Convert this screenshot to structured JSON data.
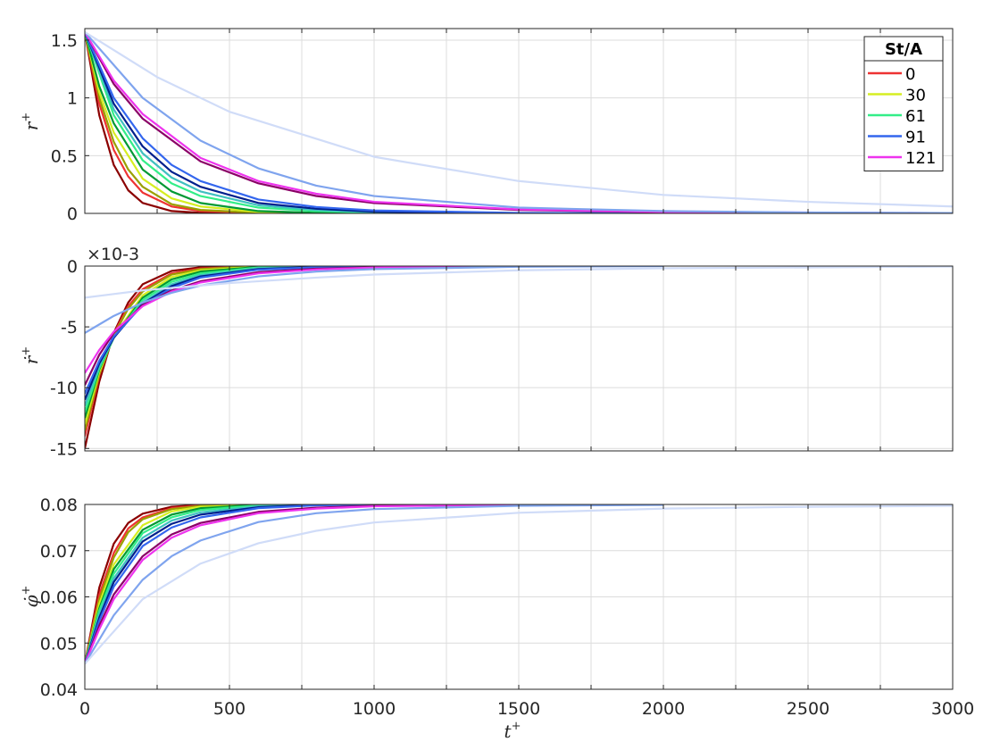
{
  "legend": {
    "title": "St/A",
    "entries": [
      {
        "label": "0",
        "color": "#ee3333"
      },
      {
        "label": "30",
        "color": "#d6ee22"
      },
      {
        "label": "61",
        "color": "#33ee88"
      },
      {
        "label": "91",
        "color": "#3366ee"
      },
      {
        "label": "121",
        "color": "#ee33ee"
      }
    ]
  },
  "chart_data": [
    {
      "type": "line",
      "ylabel": "r⁺",
      "xlabel": "",
      "xlim": [
        0,
        3000
      ],
      "ylim": [
        0,
        1.6
      ],
      "x_ticks": [
        0,
        500,
        1000,
        1500,
        2000,
        2500,
        3000
      ],
      "y_ticks": [
        "0",
        "0.5",
        "1",
        "1.5"
      ],
      "y_tick_values": [
        0,
        0.5,
        1,
        1.5
      ],
      "grid": true,
      "legend_position": "top-right",
      "series": [
        {
          "color": "#8b0000",
          "x": [
            0,
            50,
            100,
            150,
            200,
            300,
            400,
            600
          ],
          "y": [
            1.57,
            0.85,
            0.42,
            0.2,
            0.09,
            0.02,
            0.005,
            0
          ]
        },
        {
          "color": "#ee3333",
          "x": [
            0,
            50,
            100,
            150,
            200,
            300,
            400,
            600,
            800
          ],
          "y": [
            1.57,
            0.95,
            0.55,
            0.32,
            0.18,
            0.06,
            0.02,
            0.003,
            0
          ]
        },
        {
          "color": "#9aa000",
          "x": [
            0,
            50,
            100,
            150,
            200,
            300,
            400,
            600,
            800
          ],
          "y": [
            1.57,
            1.0,
            0.62,
            0.38,
            0.23,
            0.08,
            0.03,
            0.005,
            0
          ]
        },
        {
          "color": "#d6ee22",
          "x": [
            0,
            50,
            100,
            200,
            300,
            400,
            600,
            800
          ],
          "y": [
            1.57,
            1.05,
            0.7,
            0.3,
            0.13,
            0.06,
            0.012,
            0.002
          ]
        },
        {
          "color": "#009933",
          "x": [
            0,
            50,
            100,
            200,
            300,
            400,
            600,
            800,
            1000
          ],
          "y": [
            1.57,
            1.1,
            0.78,
            0.38,
            0.19,
            0.09,
            0.02,
            0.005,
            0
          ]
        },
        {
          "color": "#33ee88",
          "x": [
            0,
            100,
            200,
            300,
            400,
            600,
            800,
            1000,
            1400
          ],
          "y": [
            1.57,
            0.85,
            0.46,
            0.26,
            0.15,
            0.05,
            0.02,
            0.006,
            0
          ]
        },
        {
          "color": "#40c0c0",
          "x": [
            0,
            100,
            200,
            300,
            400,
            600,
            800,
            1000,
            1400
          ],
          "y": [
            1.57,
            0.9,
            0.52,
            0.31,
            0.19,
            0.07,
            0.03,
            0.01,
            0
          ]
        },
        {
          "color": "#001f8c",
          "x": [
            0,
            100,
            200,
            300,
            400,
            600,
            800,
            1000,
            1500
          ],
          "y": [
            1.57,
            0.95,
            0.58,
            0.36,
            0.23,
            0.09,
            0.04,
            0.015,
            0
          ]
        },
        {
          "color": "#3366ee",
          "x": [
            0,
            100,
            200,
            300,
            400,
            600,
            800,
            1000,
            1500,
            2000
          ],
          "y": [
            1.57,
            1.0,
            0.65,
            0.42,
            0.28,
            0.12,
            0.055,
            0.025,
            0.004,
            0
          ]
        },
        {
          "color": "#8a0066",
          "x": [
            0,
            100,
            200,
            400,
            600,
            800,
            1000,
            1500,
            2000,
            3000
          ],
          "y": [
            1.57,
            1.12,
            0.82,
            0.45,
            0.26,
            0.15,
            0.09,
            0.03,
            0.01,
            0.001
          ]
        },
        {
          "color": "#ee33ee",
          "x": [
            0,
            100,
            200,
            400,
            600,
            800,
            1000,
            1500,
            2000,
            3000
          ],
          "y": [
            1.57,
            1.15,
            0.86,
            0.48,
            0.28,
            0.17,
            0.1,
            0.035,
            0.012,
            0.002
          ]
        },
        {
          "color": "#7fa4ee",
          "x": [
            0,
            200,
            400,
            600,
            800,
            1000,
            1500,
            2000,
            2500,
            3000
          ],
          "y": [
            1.57,
            1.0,
            0.63,
            0.39,
            0.24,
            0.15,
            0.05,
            0.02,
            0.008,
            0.003
          ]
        },
        {
          "color": "#d0dcf8",
          "x": [
            0,
            250,
            500,
            1000,
            1500,
            2000,
            2500,
            3000
          ],
          "y": [
            1.57,
            1.18,
            0.88,
            0.49,
            0.28,
            0.16,
            0.1,
            0.06
          ]
        }
      ]
    },
    {
      "type": "line",
      "ylabel": "ṙ⁺",
      "xlabel": "",
      "multiplier_label": "×10-3",
      "xlim": [
        0,
        3000
      ],
      "ylim": [
        -15.2,
        0
      ],
      "x_ticks": [
        0,
        500,
        1000,
        1500,
        2000,
        2500,
        3000
      ],
      "y_ticks": [
        "0",
        "-5",
        "-10",
        "-15"
      ],
      "y_tick_values": [
        0,
        -5,
        -10,
        -15
      ],
      "grid": true,
      "series": [
        {
          "color": "#8b0000",
          "x": [
            0,
            50,
            100,
            150,
            200,
            300,
            400,
            600
          ],
          "y": [
            -15.0,
            -9.5,
            -5.5,
            -3.0,
            -1.5,
            -0.4,
            -0.1,
            0
          ]
        },
        {
          "color": "#ee3333",
          "x": [
            0,
            50,
            100,
            150,
            200,
            300,
            400,
            600
          ],
          "y": [
            -14.0,
            -9.0,
            -5.6,
            -3.3,
            -1.9,
            -0.6,
            -0.2,
            0
          ]
        },
        {
          "color": "#9aa000",
          "x": [
            0,
            50,
            100,
            150,
            200,
            300,
            400,
            600
          ],
          "y": [
            -13.5,
            -8.9,
            -5.7,
            -3.5,
            -2.1,
            -0.7,
            -0.25,
            0
          ]
        },
        {
          "color": "#d6ee22",
          "x": [
            0,
            50,
            100,
            200,
            300,
            400,
            600,
            800
          ],
          "y": [
            -13.0,
            -8.7,
            -5.8,
            -2.4,
            -0.9,
            -0.35,
            -0.05,
            0
          ]
        },
        {
          "color": "#009933",
          "x": [
            0,
            50,
            100,
            200,
            300,
            400,
            600,
            800
          ],
          "y": [
            -12.5,
            -8.5,
            -5.9,
            -2.6,
            -1.1,
            -0.45,
            -0.07,
            0
          ]
        },
        {
          "color": "#33ee88",
          "x": [
            0,
            50,
            100,
            200,
            300,
            400,
            600,
            800
          ],
          "y": [
            -12.0,
            -8.4,
            -5.9,
            -2.8,
            -1.3,
            -0.6,
            -0.12,
            0
          ]
        },
        {
          "color": "#40c0c0",
          "x": [
            0,
            50,
            100,
            200,
            300,
            400,
            600,
            800,
            1000
          ],
          "y": [
            -11.5,
            -8.2,
            -5.9,
            -3.0,
            -1.5,
            -0.75,
            -0.18,
            -0.05,
            0
          ]
        },
        {
          "color": "#001f8c",
          "x": [
            0,
            50,
            100,
            200,
            300,
            400,
            600,
            800,
            1000
          ],
          "y": [
            -11.0,
            -8.0,
            -5.9,
            -3.1,
            -1.65,
            -0.85,
            -0.25,
            -0.07,
            0
          ]
        },
        {
          "color": "#3366ee",
          "x": [
            0,
            50,
            100,
            200,
            300,
            400,
            600,
            800,
            1000
          ],
          "y": [
            -10.5,
            -7.8,
            -5.8,
            -3.2,
            -1.8,
            -0.95,
            -0.3,
            -0.1,
            0
          ]
        },
        {
          "color": "#8a0066",
          "x": [
            0,
            50,
            100,
            200,
            300,
            400,
            600,
            800,
            1000,
            1500
          ],
          "y": [
            -9.8,
            -7.3,
            -5.5,
            -3.2,
            -2.0,
            -1.25,
            -0.5,
            -0.22,
            -0.1,
            0
          ]
        },
        {
          "color": "#ee33ee",
          "x": [
            0,
            50,
            100,
            200,
            300,
            400,
            600,
            800,
            1000,
            1500
          ],
          "y": [
            -8.8,
            -6.9,
            -5.4,
            -3.3,
            -2.1,
            -1.35,
            -0.6,
            -0.28,
            -0.13,
            0
          ]
        },
        {
          "color": "#7fa4ee",
          "x": [
            0,
            50,
            100,
            200,
            300,
            400,
            600,
            800,
            1000,
            1500,
            2000
          ],
          "y": [
            -5.5,
            -4.8,
            -4.1,
            -3.0,
            -2.2,
            -1.6,
            -0.85,
            -0.45,
            -0.25,
            -0.06,
            0
          ]
        },
        {
          "color": "#d0dcf8",
          "x": [
            0,
            100,
            200,
            300,
            500,
            800,
            1000,
            1500,
            2000,
            3000
          ],
          "y": [
            -2.6,
            -2.3,
            -2.0,
            -1.8,
            -1.4,
            -0.95,
            -0.7,
            -0.35,
            -0.18,
            -0.04
          ]
        }
      ]
    },
    {
      "type": "line",
      "ylabel": "φ̇⁺",
      "xlabel": "t⁺",
      "xlim": [
        0,
        3000
      ],
      "ylim": [
        0.04,
        0.08
      ],
      "x_ticks": [
        0,
        500,
        1000,
        1500,
        2000,
        2500,
        3000
      ],
      "y_ticks": [
        "0.04",
        "0.05",
        "0.06",
        "0.07",
        "0.08"
      ],
      "y_tick_values": [
        0.04,
        0.05,
        0.06,
        0.07,
        0.08
      ],
      "grid": true,
      "series": [
        {
          "color": "#8b0000",
          "x": [
            0,
            50,
            100,
            150,
            200,
            300,
            400,
            600
          ],
          "y": [
            0.0455,
            0.062,
            0.0715,
            0.076,
            0.078,
            0.0795,
            0.0799,
            0.08
          ]
        },
        {
          "color": "#ee3333",
          "x": [
            0,
            50,
            100,
            150,
            200,
            300,
            400,
            600
          ],
          "y": [
            0.0455,
            0.0605,
            0.0695,
            0.0748,
            0.0772,
            0.0792,
            0.0798,
            0.08
          ]
        },
        {
          "color": "#9aa000",
          "x": [
            0,
            50,
            100,
            150,
            200,
            300,
            400,
            600
          ],
          "y": [
            0.0455,
            0.0595,
            0.0685,
            0.074,
            0.0768,
            0.079,
            0.0797,
            0.08
          ]
        },
        {
          "color": "#d6ee22",
          "x": [
            0,
            50,
            100,
            200,
            300,
            400,
            600,
            800
          ],
          "y": [
            0.0455,
            0.0585,
            0.067,
            0.0755,
            0.0785,
            0.0795,
            0.0799,
            0.08
          ]
        },
        {
          "color": "#009933",
          "x": [
            0,
            50,
            100,
            200,
            300,
            400,
            600,
            800
          ],
          "y": [
            0.0455,
            0.0575,
            0.066,
            0.0745,
            0.0778,
            0.0792,
            0.0799,
            0.08
          ]
        },
        {
          "color": "#33ee88",
          "x": [
            0,
            50,
            100,
            200,
            300,
            400,
            600,
            800
          ],
          "y": [
            0.0455,
            0.057,
            0.065,
            0.0738,
            0.0772,
            0.0788,
            0.0798,
            0.08
          ]
        },
        {
          "color": "#40c0c0",
          "x": [
            0,
            50,
            100,
            200,
            300,
            400,
            600,
            800,
            1000
          ],
          "y": [
            0.0455,
            0.0562,
            0.064,
            0.0728,
            0.0765,
            0.0783,
            0.0796,
            0.0799,
            0.08
          ]
        },
        {
          "color": "#001f8c",
          "x": [
            0,
            50,
            100,
            200,
            300,
            400,
            600,
            800,
            1000
          ],
          "y": [
            0.0455,
            0.0555,
            0.0632,
            0.072,
            0.0758,
            0.0778,
            0.0794,
            0.0799,
            0.08
          ]
        },
        {
          "color": "#3366ee",
          "x": [
            0,
            50,
            100,
            200,
            300,
            400,
            600,
            800,
            1000
          ],
          "y": [
            0.0455,
            0.0548,
            0.0622,
            0.071,
            0.075,
            0.0772,
            0.0792,
            0.0798,
            0.08
          ]
        },
        {
          "color": "#8a0066",
          "x": [
            0,
            50,
            100,
            200,
            300,
            400,
            600,
            800,
            1000,
            1500
          ],
          "y": [
            0.0455,
            0.0538,
            0.0605,
            0.0688,
            0.0735,
            0.076,
            0.0784,
            0.0793,
            0.0797,
            0.0799
          ]
        },
        {
          "color": "#ee33ee",
          "x": [
            0,
            50,
            100,
            200,
            300,
            400,
            600,
            800,
            1000,
            1500
          ],
          "y": [
            0.0455,
            0.053,
            0.0595,
            0.068,
            0.0728,
            0.0755,
            0.0781,
            0.0791,
            0.0796,
            0.0799
          ]
        },
        {
          "color": "#7fa4ee",
          "x": [
            0,
            100,
            200,
            300,
            400,
            600,
            800,
            1000,
            1500,
            2000
          ],
          "y": [
            0.0455,
            0.056,
            0.0637,
            0.0688,
            0.0722,
            0.0762,
            0.0781,
            0.079,
            0.0797,
            0.0799
          ]
        },
        {
          "color": "#d0dcf8",
          "x": [
            0,
            200,
            400,
            600,
            800,
            1000,
            1500,
            2000,
            2500,
            3000
          ],
          "y": [
            0.0455,
            0.0595,
            0.0672,
            0.0716,
            0.0743,
            0.0761,
            0.0782,
            0.0791,
            0.0795,
            0.0797
          ]
        }
      ]
    }
  ]
}
